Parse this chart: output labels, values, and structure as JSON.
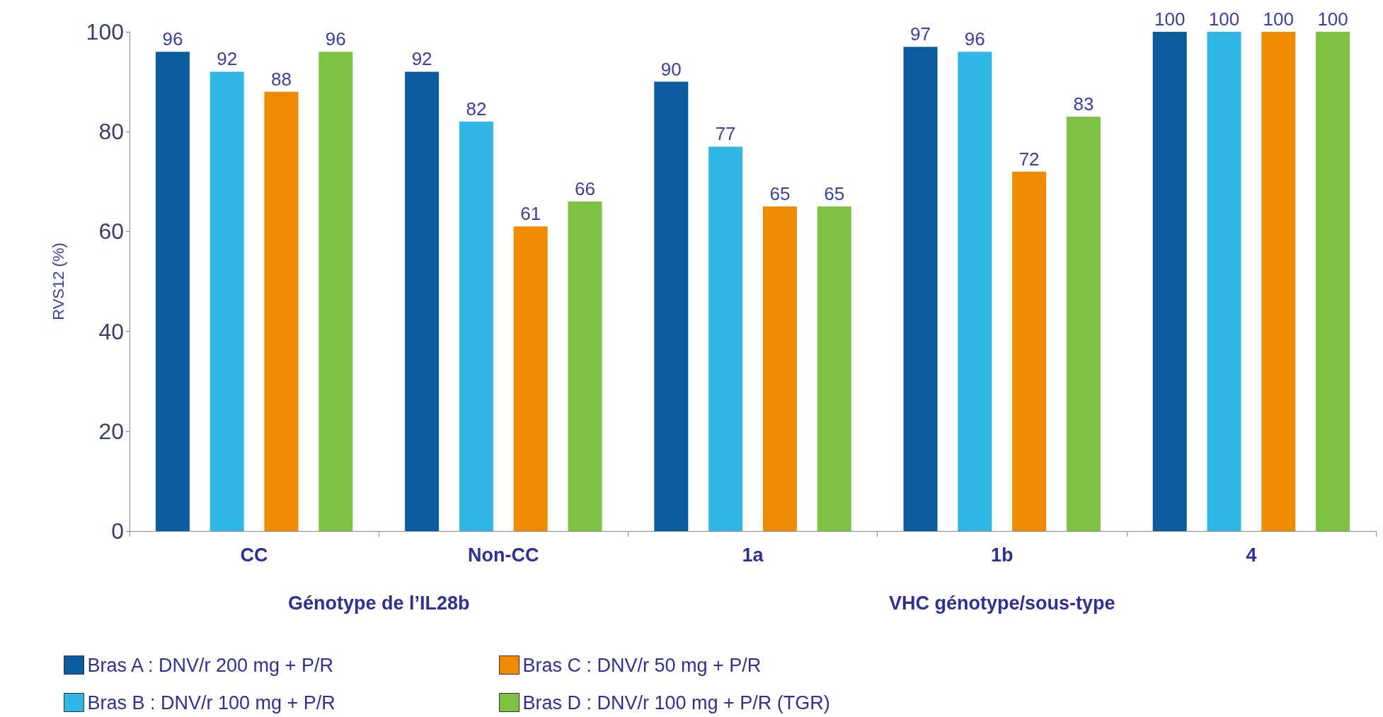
{
  "chart_data": {
    "type": "bar",
    "ylabel": "RVS12 (%)",
    "categories": [
      "CC",
      "Non-CC",
      "1a",
      "1b",
      "4"
    ],
    "series": [
      {
        "name": "Bras A : DNV/r 200 mg + P/R",
        "color": "#0b5c9e",
        "values": [
          96,
          92,
          90,
          97,
          100
        ]
      },
      {
        "name": "Bras B : DNV/r 100 mg + P/R",
        "color": "#2fb8e6",
        "values": [
          92,
          82,
          77,
          96,
          100
        ]
      },
      {
        "name": "Bras C : DNV/r 50 mg + P/R",
        "color": "#f08a00",
        "values": [
          88,
          61,
          65,
          72,
          100
        ]
      },
      {
        "name": "Bras D : DNV/r 100 mg + P/R (TGR)",
        "color": "#7dc242",
        "values": [
          96,
          66,
          65,
          83,
          100
        ]
      }
    ],
    "ylim": [
      0,
      100
    ],
    "yticks": [
      0,
      20,
      40,
      60,
      80,
      100
    ],
    "data_labels": true,
    "grid": false,
    "legend": "bottom left",
    "annotations": [
      "Génotype de l’IL28b",
      "VHC génotype/sous-type"
    ]
  }
}
